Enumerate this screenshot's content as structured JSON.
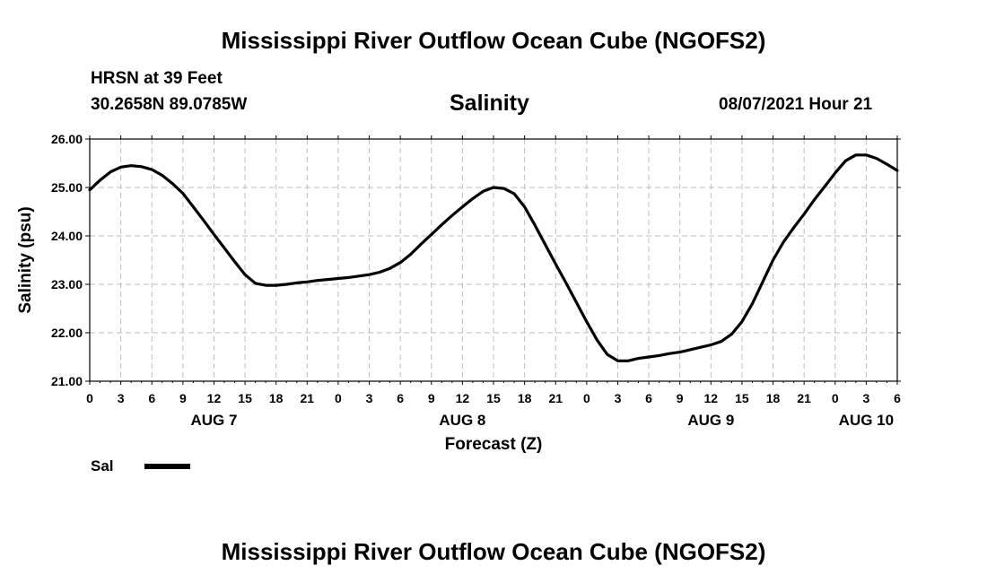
{
  "header": {
    "title": "Mississippi River Outflow Ocean Cube (NGOFS2)",
    "station": "HRSN at 39 Feet",
    "coords": "30.2658N  89.0785W",
    "variable": "Salinity",
    "datetime": "08/07/2021 Hour 21"
  },
  "footer": {
    "title": "Mississippi River Outflow Ocean Cube (NGOFS2)"
  },
  "legend": {
    "label": "Sal"
  },
  "chart_data": {
    "type": "line",
    "ylabel": "Salinity (psu)",
    "xlabel": "Forecast (Z)",
    "ylim": [
      21.0,
      26.0
    ],
    "xlim": [
      0,
      78
    ],
    "y_ticks": [
      21.0,
      22.0,
      23.0,
      24.0,
      25.0,
      26.0
    ],
    "y_tick_labels": [
      "21.00",
      "22.00",
      "23.00",
      "24.00",
      "25.00",
      "26.00"
    ],
    "x_ticks": [
      0,
      3,
      6,
      9,
      12,
      15,
      18,
      21,
      24,
      27,
      30,
      33,
      36,
      39,
      42,
      45,
      48,
      51,
      54,
      57,
      60,
      63,
      66,
      69,
      72,
      75,
      78
    ],
    "x_tick_labels": [
      "0",
      "3",
      "6",
      "9",
      "12",
      "15",
      "18",
      "21",
      "0",
      "3",
      "6",
      "9",
      "12",
      "15",
      "18",
      "21",
      "0",
      "3",
      "6",
      "9",
      "12",
      "15",
      "18",
      "21",
      "0",
      "3",
      "6"
    ],
    "day_labels": [
      {
        "hour": 12,
        "label": "AUG 7"
      },
      {
        "hour": 36,
        "label": "AUG 8"
      },
      {
        "hour": 60,
        "label": "AUG 9"
      },
      {
        "hour": 75,
        "label": "AUG 10"
      }
    ],
    "grid": true,
    "series": [
      {
        "name": "Sal",
        "x": [
          0,
          1,
          2,
          3,
          4,
          5,
          6,
          7,
          8,
          9,
          10,
          11,
          12,
          13,
          14,
          15,
          16,
          17,
          18,
          19,
          20,
          21,
          22,
          23,
          24,
          25,
          26,
          27,
          28,
          29,
          30,
          31,
          32,
          33,
          34,
          35,
          36,
          37,
          38,
          39,
          40,
          41,
          42,
          43,
          44,
          45,
          46,
          47,
          48,
          49,
          50,
          51,
          52,
          53,
          54,
          55,
          56,
          57,
          58,
          59,
          60,
          61,
          62,
          63,
          64,
          65,
          66,
          67,
          68,
          69,
          70,
          71,
          72,
          73,
          74,
          75,
          76,
          77,
          78
        ],
        "values": [
          24.95,
          25.15,
          25.32,
          25.42,
          25.45,
          25.43,
          25.37,
          25.25,
          25.08,
          24.88,
          24.6,
          24.32,
          24.03,
          23.75,
          23.47,
          23.2,
          23.02,
          22.98,
          22.98,
          23.0,
          23.03,
          23.05,
          23.08,
          23.1,
          23.12,
          23.14,
          23.17,
          23.2,
          23.25,
          23.33,
          23.45,
          23.62,
          23.83,
          24.03,
          24.23,
          24.42,
          24.6,
          24.77,
          24.92,
          25.0,
          24.98,
          24.87,
          24.6,
          24.22,
          23.82,
          23.42,
          23.03,
          22.63,
          22.23,
          21.85,
          21.55,
          21.42,
          21.42,
          21.47,
          21.5,
          21.53,
          21.57,
          21.6,
          21.65,
          21.7,
          21.75,
          21.82,
          21.97,
          22.23,
          22.6,
          23.05,
          23.5,
          23.87,
          24.17,
          24.45,
          24.75,
          25.02,
          25.3,
          25.55,
          25.67,
          25.67,
          25.6,
          25.48,
          25.35
        ]
      }
    ]
  }
}
